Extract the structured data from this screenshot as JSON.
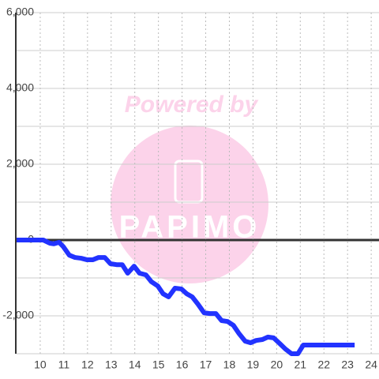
{
  "chart_data": {
    "type": "line",
    "watermark": [
      "Powered by",
      "PAPIMO"
    ],
    "xlim": [
      9,
      24.33
    ],
    "xticks": [
      10,
      11,
      12,
      13,
      14,
      15,
      16,
      17,
      18,
      19,
      20,
      21,
      22,
      23,
      24
    ],
    "ylim": [
      -3000,
      6000
    ],
    "yticks": [
      {
        "value": -2000,
        "label": "-2,000"
      },
      0,
      {
        "value": 2000,
        "label": "2,000"
      },
      {
        "value": 4000,
        "label": "4,000"
      },
      {
        "value": 6000,
        "label": "6,000"
      }
    ],
    "y_minor_ticks": [
      -3000,
      -1000,
      1000,
      3000,
      5000
    ],
    "grid": true,
    "series": [
      {
        "color": "#2233ff",
        "x": [
          9,
          10.13,
          10.4,
          10.57,
          10.8,
          10.97,
          11.23,
          11.47,
          11.73,
          11.97,
          12.23,
          12.47,
          12.73,
          12.97,
          13.23,
          13.47,
          13.7,
          13.97,
          14.2,
          14.47,
          14.7,
          14.97,
          15.2,
          15.43,
          15.7,
          15.97,
          16.2,
          16.43,
          16.67,
          16.93,
          17.17,
          17.43,
          17.67,
          17.93,
          18.17,
          18.4,
          18.67,
          18.9,
          19.13,
          19.4,
          19.63,
          19.87,
          20.13,
          20.37,
          20.63,
          20.9,
          21.13,
          23.3
        ],
        "values": [
          0,
          0,
          -83,
          -100,
          -60,
          -170,
          -400,
          -460,
          -480,
          -520,
          -520,
          -460,
          -460,
          -625,
          -650,
          -650,
          -875,
          -690,
          -875,
          -920,
          -1100,
          -1210,
          -1420,
          -1500,
          -1270,
          -1290,
          -1420,
          -1500,
          -1690,
          -1920,
          -1940,
          -1940,
          -2125,
          -2150,
          -2250,
          -2460,
          -2670,
          -2710,
          -2650,
          -2625,
          -2560,
          -2580,
          -2730,
          -2875,
          -3000,
          -3000,
          -2770,
          -2770
        ]
      }
    ]
  }
}
